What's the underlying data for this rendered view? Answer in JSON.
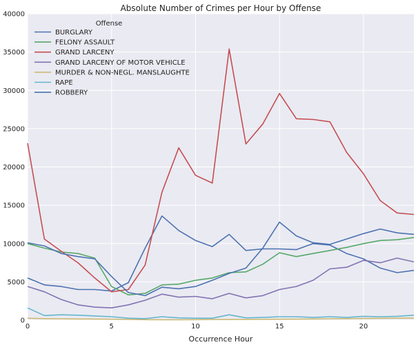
{
  "chart_data": {
    "type": "line",
    "title": "Absolute Number of Crimes per Hour by Offense",
    "xlabel": "Occurrence Hour",
    "ylabel": "",
    "xlim": [
      0,
      23
    ],
    "ylim": [
      0,
      40000
    ],
    "xticks": [
      0,
      5,
      10,
      15,
      20
    ],
    "yticks": [
      0,
      5000,
      10000,
      15000,
      20000,
      25000,
      30000,
      35000,
      40000
    ],
    "grid": true,
    "legend": {
      "title": "Offense",
      "placement": "top-left"
    },
    "x": [
      0,
      1,
      2,
      3,
      4,
      5,
      6,
      7,
      8,
      9,
      10,
      11,
      12,
      13,
      14,
      15,
      16,
      17,
      18,
      19,
      20,
      21,
      22,
      23
    ],
    "series": [
      {
        "name": "BURGLARY",
        "color": "#4c72b0",
        "values": [
          5500,
          4600,
          4400,
          4000,
          4000,
          3800,
          4900,
          9400,
          13600,
          11700,
          10400,
          9600,
          11200,
          9100,
          9300,
          9300,
          9200,
          10000,
          9800,
          8700,
          8000,
          6800,
          6200,
          6500
        ]
      },
      {
        "name": "FELONY ASSAULT",
        "color": "#55a868",
        "values": [
          10000,
          9400,
          8900,
          8700,
          8100,
          4400,
          3300,
          3500,
          4600,
          4700,
          5200,
          5500,
          6200,
          6300,
          7300,
          8800,
          8300,
          8700,
          9100,
          9500,
          10000,
          10400,
          10500,
          10800
        ]
      },
      {
        "name": "GRAND LARCENY",
        "color": "#c44e52",
        "values": [
          23100,
          10600,
          9000,
          7500,
          5500,
          3700,
          4000,
          7200,
          16700,
          22500,
          18900,
          17900,
          35400,
          23000,
          25600,
          29600,
          26300,
          26200,
          25900,
          21900,
          19100,
          15600,
          14000,
          13800
        ]
      },
      {
        "name": "GRAND LARCENY OF MOTOR VEHICLE",
        "color": "#8172b2",
        "values": [
          4400,
          3700,
          2700,
          2000,
          1700,
          1600,
          2000,
          2600,
          3400,
          3000,
          3100,
          2800,
          3500,
          2900,
          3200,
          4000,
          4400,
          5200,
          6700,
          6900,
          7800,
          7500,
          8100,
          7600
        ]
      },
      {
        "name": "MURDER & NON-NEGL. MANSLAUGHTE",
        "color": "#ccb974",
        "values": [
          250,
          200,
          180,
          150,
          140,
          120,
          100,
          60,
          50,
          50,
          60,
          80,
          80,
          100,
          110,
          120,
          130,
          150,
          180,
          200,
          220,
          240,
          250,
          260
        ]
      },
      {
        "name": "RAPE",
        "color": "#64b5cd",
        "values": [
          1600,
          600,
          700,
          650,
          550,
          450,
          250,
          200,
          450,
          300,
          250,
          250,
          700,
          300,
          350,
          450,
          450,
          350,
          450,
          350,
          500,
          450,
          500,
          650
        ]
      },
      {
        "name": "ROBBERY",
        "color": "#4c72b0",
        "values": [
          10100,
          9700,
          8700,
          8300,
          8000,
          5700,
          3600,
          3200,
          4300,
          4100,
          4400,
          5200,
          6100,
          6800,
          9400,
          12800,
          11000,
          10100,
          9900,
          10600,
          11300,
          11900,
          11400,
          11200
        ]
      }
    ]
  }
}
